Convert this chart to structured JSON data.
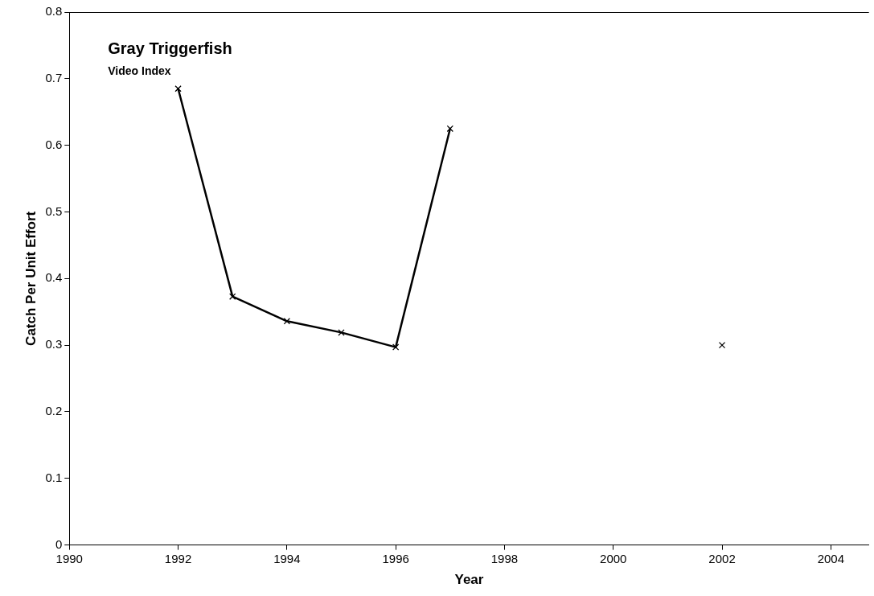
{
  "chart_data": {
    "type": "line",
    "title": "Gray Triggerfish",
    "subtitle": "Video Index",
    "xlabel": "Year",
    "ylabel": "Catch Per Unit Effort",
    "xlim": [
      1990,
      2004.7
    ],
    "xticks": [
      1990,
      1992,
      1994,
      1996,
      1998,
      2000,
      2002,
      2004
    ],
    "ylim": [
      0,
      0.8
    ],
    "yticks": [
      0,
      0.1,
      0.2,
      0.3,
      0.4,
      0.5,
      0.6,
      0.7,
      0.8
    ],
    "grid": false,
    "legend": false,
    "marker": "cross",
    "line_style": "solid",
    "series": [
      {
        "color": "#000000",
        "x": [
          1992,
          1993,
          1994,
          1995,
          1996,
          1997
        ],
        "values": [
          0.685,
          0.373,
          0.336,
          0.319,
          0.297,
          0.625
        ]
      },
      {
        "type": "scatter",
        "color": "#000000",
        "x": [
          2002
        ],
        "values": [
          0.3
        ]
      }
    ]
  }
}
